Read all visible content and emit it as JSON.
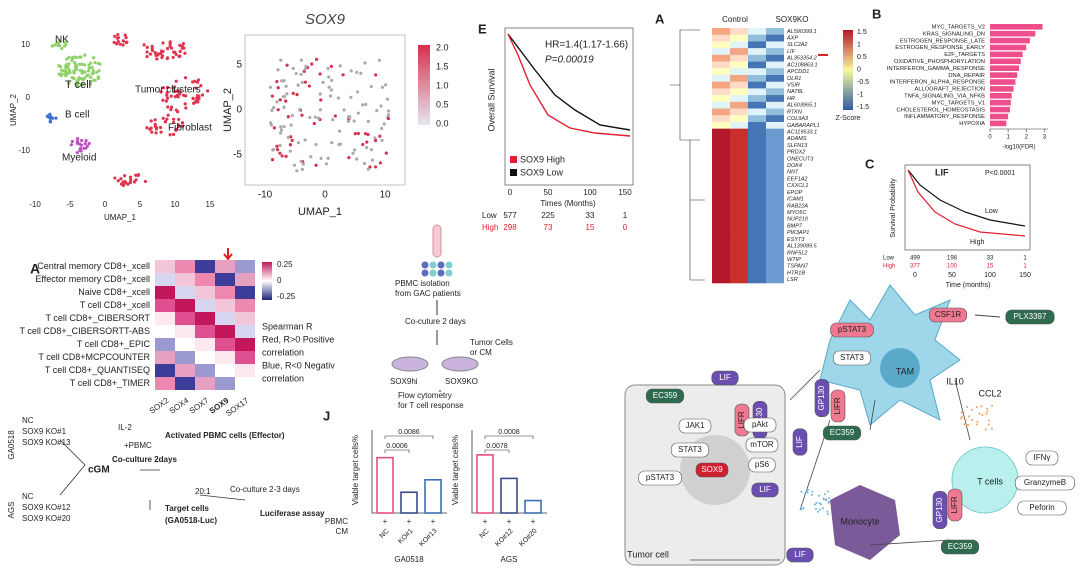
{
  "umap": {
    "clusters": [
      "NK",
      "T cell",
      "Tumor clusters",
      "B cell",
      "Fibroblast",
      "Myeloid"
    ],
    "xlabel": "UMAP_1",
    "ylabel": "UMAP_2",
    "xticks": [
      "-10",
      "-5",
      "0",
      "5",
      "10",
      "15"
    ],
    "yticks": [
      "10",
      "0",
      "-10"
    ]
  },
  "sox9_umap": {
    "title": "SOX9",
    "xlabel": "UMAP_1",
    "ylabel": "UMAP_2",
    "xticks": [
      "-10",
      "0",
      "10"
    ],
    "yticks": [
      "5",
      "0",
      "-5"
    ],
    "scale": [
      "2.0",
      "1.5",
      "1.0",
      "0.5",
      "0.0"
    ]
  },
  "panel_e": {
    "letter": "E",
    "ylabel": "Overall Survival",
    "xlabel": "Times (Months)",
    "hr": "HR=1.4(1.17-1.66)",
    "p": "P=0.00019",
    "legend": [
      "SOX9 High",
      "SOX9 Low"
    ],
    "xticks": [
      "0",
      "50",
      "100",
      "150"
    ],
    "risk": [
      {
        "group": "Low",
        "counts": [
          "577",
          "225",
          "33",
          "1"
        ]
      },
      {
        "group": "High",
        "counts": [
          "298",
          "73",
          "15",
          "0"
        ]
      }
    ]
  },
  "heatmap_rna": {
    "letter": "A",
    "columns": [
      "Control",
      "SOX9KO"
    ],
    "genes": [
      "AL590399.1",
      "AXP",
      "SLC2A2",
      "LIF",
      "AL353354.2",
      "AC108863.1",
      "APCDD1",
      "OLR1",
      "VSIR",
      "NAT8L",
      "HR",
      "AL603965.1",
      "RTKN",
      "COL9A3",
      "GABARAPL1",
      "AC119533.1",
      "ADAMS",
      "SLFN13",
      "PRDX2",
      "ONECUT3",
      "DOK4",
      "NNT",
      "EEF1A2",
      "CXXCL1",
      "EPOP",
      "ICAM1",
      "RAB22A",
      "MYO5C",
      "NUP210",
      "BMP7",
      "PIK3AP1",
      "ESYT3",
      "AL139089.5",
      "RNF5L2",
      "WTIP",
      "TSPAN7",
      "HTR1B",
      "LSR"
    ],
    "scale_title": "Z-Score",
    "scale": [
      "1.5",
      "1",
      "0.5",
      "0",
      "-0.5",
      "-1",
      "-1.5"
    ]
  },
  "panel_b": {
    "letter": "B",
    "categories": [
      "MYC_TARGETS_V2",
      "KRAS_SIGNALING_DN",
      "ESTROGEN_RESPONSE_LATE",
      "ESTROGEN_RESPONSE_EARLY",
      "E2F_TARGETS",
      "OXIDATIVE_PHOSPHORYLATION",
      "INTERFERON_GAMMA_RESPONSE",
      "DNA_REPAIR",
      "INTERFERON_ALPHA_RESPONSE",
      "ALLOGRAFT_REJECTION",
      "TNFA_SIGNALING_VIA_NFKB",
      "MYC_TARGETS_V1",
      "CHOLESTEROL_HOMEOSTASIS",
      "INFLAMMATORY_RESPONSE",
      "HYPOXIA"
    ],
    "values": [
      2.9,
      2.5,
      2.2,
      2.0,
      1.8,
      1.7,
      1.6,
      1.5,
      1.4,
      1.3,
      1.2,
      1.15,
      1.1,
      1.0,
      0.9
    ],
    "color": "#ee4f8c",
    "xlim": [
      0,
      3.2
    ],
    "xticks": [
      0,
      1,
      2,
      3
    ],
    "xlabel": "-log10(FDR)"
  },
  "panel_c": {
    "letter": "C",
    "title": "LIF",
    "p": "P<0.0001",
    "ylabel": "Survival Probability",
    "xlabel": "Time (months)",
    "curve_labels": [
      "Low",
      "High"
    ],
    "xticks": [
      "0",
      "50",
      "100",
      "150"
    ],
    "risk": [
      {
        "group": "Low",
        "counts": [
          "499",
          "198",
          "33",
          "1"
        ]
      },
      {
        "group": "High",
        "counts": [
          "377",
          "100",
          "15",
          "1"
        ]
      }
    ]
  },
  "heatmap_corr": {
    "letter": "A",
    "rows": [
      "Central memory CD8+_xcell",
      "Effector memory CD8+_xcell",
      "Naive CD8+_xcell",
      "T cell CD8+_xcell",
      "T cell CD8+_CIBERSORT",
      "T cell CD8+_CIBERSORTT-ABS",
      "T cell CD8+_EPIC",
      "T cell CD8+MCPCOUNTER",
      "T cell CD8+_QUANTISEQ",
      "T cell CD8+_TIMER"
    ],
    "columns": [
      "SOX2",
      "SOX4",
      "SOX7",
      "SOX9",
      "SOX17"
    ],
    "scale": [
      "0.25",
      "0",
      "-0.25"
    ],
    "notes": [
      "Spearman R",
      "Red, R>0 Positive",
      "correlation",
      "Blue, R<0 Negativ",
      "correlation"
    ]
  },
  "schematic": {
    "steps": [
      "PBMC isolation",
      "from GAC patients",
      "Co-cuture 2 days",
      "Tumor Cells",
      "or CM",
      "SOX9hi",
      "SOX9KO",
      "Flow cytometry",
      "for T cell response"
    ]
  },
  "assay": {
    "nodes": [
      "GA0518",
      "AGS",
      "NC",
      "SOX9 KO#1",
      "SOX9 KO#13",
      "NC",
      "SOX9 KO#12",
      "SOX9 KO#20",
      "cGM",
      "IL-2",
      "+PBMC",
      "Activated PBMC cells (Effector)",
      "Co-culture 2days",
      "20:1",
      "Target cells",
      "(GA0518-Luc)",
      "Co-culture 2-3 days",
      "Luciferase assay"
    ]
  },
  "panel_j": {
    "letter": "J",
    "ylabel": "Viable target cells%",
    "row_labels": [
      "PBMC",
      "CM"
    ],
    "pbmc": "+",
    "charts": [
      {
        "name": "GA0518",
        "categories": [
          "NC",
          "KO#1",
          "KO#13"
        ],
        "values": [
          20,
          7.5,
          12
        ],
        "colors": [
          "#e8507a",
          "#3b4a8a",
          "#3b6fb5"
        ],
        "ylim": [
          0,
          30
        ],
        "comparisons": [
          "0.0086",
          "0.0006"
        ]
      },
      {
        "name": "AGS",
        "categories": [
          "NC",
          "KO#12",
          "KO#20"
        ],
        "values": [
          21,
          12.5,
          4.5
        ],
        "colors": [
          "#e8507a",
          "#3b4a8a",
          "#3b6fb5"
        ],
        "ylim": [
          0,
          30
        ],
        "comparisons": [
          "0.0008",
          "0.0078"
        ]
      }
    ]
  },
  "mechanism": {
    "nodes": [
      "EC359",
      "LIF",
      "LIFR",
      "GP130",
      "JAK1",
      "STAT3",
      "pSTAT3",
      "pAkt",
      "mTOR",
      "pS6",
      "SOX9",
      "LIF",
      "Tumor cell",
      "LIF",
      "pSTAT3",
      "STAT3",
      "GP130",
      "LIFR",
      "EC359",
      "TAM",
      "CSF1R",
      "PLX3397",
      "IL10",
      "CCL2",
      "T cells",
      "IFNγ",
      "GranzymeB",
      "Peforin",
      "GP130",
      "LIFR",
      "EC359",
      "Monocyte",
      "LIF"
    ]
  }
}
